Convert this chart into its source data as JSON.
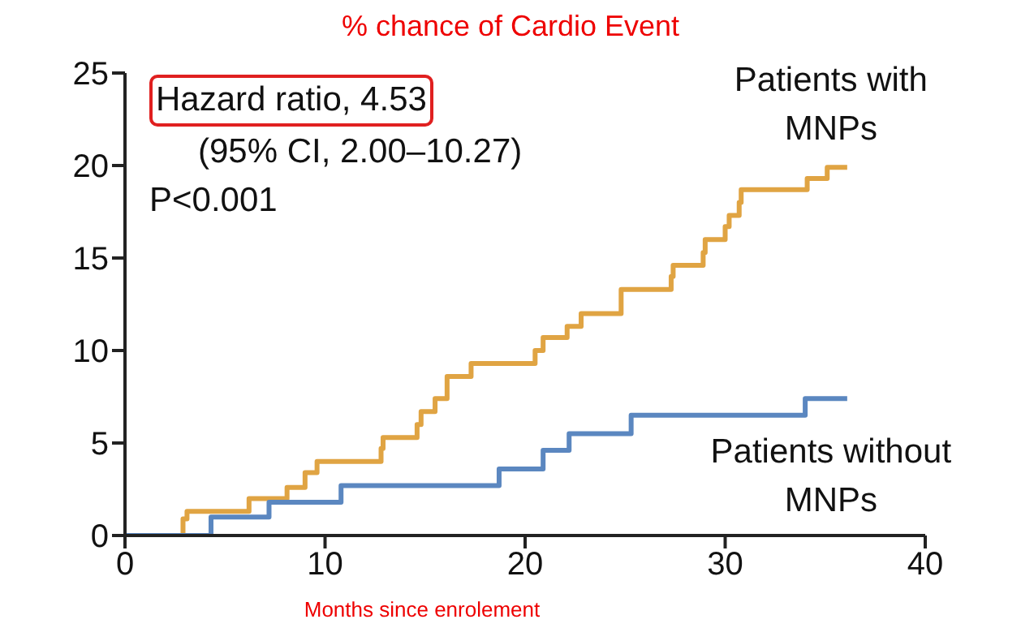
{
  "chart_data": {
    "type": "step",
    "title": "% chance of Cardio Event",
    "xlabel": "Months since enrolement",
    "annotations": [
      "Hazard ratio, 4.53",
      "(95% CI, 2.00–10.27)",
      "P<0.001"
    ],
    "xlim": [
      0,
      40
    ],
    "xticks": [
      0,
      10,
      20,
      30,
      40
    ],
    "ylim": [
      0,
      25
    ],
    "yticks": [
      0,
      5,
      10,
      15,
      20,
      25
    ],
    "grid": false,
    "series": [
      {
        "name": "Patients with MNPs",
        "color": "#e0a443",
        "x": [
          0,
          2.9,
          3.1,
          6.2,
          8.1,
          9.0,
          9.6,
          12.8,
          12.9,
          14.6,
          14.8,
          15.5,
          16.1,
          17.3,
          20.5,
          20.9,
          22.1,
          22.8,
          24.8,
          27.3,
          27.4,
          28.9,
          29.0,
          30.0,
          30.2,
          30.7,
          30.8,
          34.1,
          35.1,
          36.1
        ],
        "values": [
          0,
          0.9,
          1.3,
          2.0,
          2.6,
          3.4,
          4.0,
          4.7,
          5.3,
          6.0,
          6.7,
          7.4,
          8.6,
          9.3,
          10.0,
          10.7,
          11.3,
          12.0,
          13.3,
          14.0,
          14.6,
          15.3,
          16.0,
          16.7,
          17.3,
          18.0,
          18.7,
          19.3,
          19.9,
          19.9
        ]
      },
      {
        "name": "Patients without MNPs",
        "color": "#5b87c0",
        "x": [
          0,
          4.3,
          7.2,
          10.8,
          18.7,
          20.9,
          22.2,
          25.3,
          34.0,
          36.1
        ],
        "values": [
          0,
          1.0,
          1.8,
          2.7,
          3.6,
          4.6,
          5.5,
          6.5,
          7.4,
          7.4
        ]
      }
    ]
  }
}
